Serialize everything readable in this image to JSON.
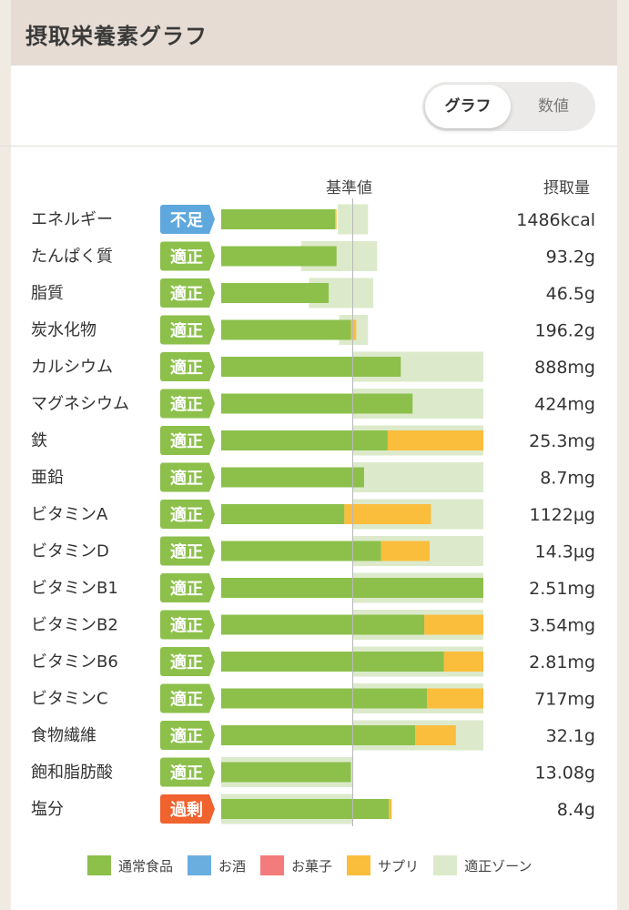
{
  "header": {
    "title": "摂取栄養素グラフ"
  },
  "toggle": {
    "graph_label": "グラフ",
    "value_label": "数値"
  },
  "colors": {
    "normal_food": "#8cc04b",
    "alcohol": "#6aaee0",
    "snack": "#f47b7b",
    "supplement": "#fbbd3c",
    "zone": "#dceacb",
    "status_ok": "#8cc04b",
    "status_low": "#5fa8dd",
    "status_high": "#f0622e"
  },
  "chart_data": {
    "type": "bar",
    "orientation": "horizontal",
    "stacked": true,
    "reference_label": "基準値",
    "amount_label": "摂取量",
    "reference_value": 100,
    "xlim": [
      0,
      200
    ],
    "unit": "% of reference",
    "categories": [
      "エネルギー",
      "たんぱく質",
      "脂質",
      "炭水化物",
      "カルシウム",
      "マグネシウム",
      "鉄",
      "亜鉛",
      "ビタミンA",
      "ビタミンD",
      "ビタミンB1",
      "ビタミンB2",
      "ビタミンB6",
      "ビタミンC",
      "食物繊維",
      "飽和脂肪酸",
      "塩分"
    ],
    "status": [
      "不足",
      "適正",
      "適正",
      "適正",
      "適正",
      "適正",
      "適正",
      "適正",
      "適正",
      "適正",
      "適正",
      "適正",
      "適正",
      "適正",
      "適正",
      "適正",
      "過剰"
    ],
    "amounts": [
      "1486kcal",
      "93.2g",
      "46.5g",
      "196.2g",
      "888mg",
      "424mg",
      "25.3mg",
      "8.7mg",
      "1122µg",
      "14.3µg",
      "2.51mg",
      "3.54mg",
      "2.81mg",
      "717mg",
      "32.1g",
      "13.08g",
      "8.4g"
    ],
    "series": [
      {
        "name": "通常食品",
        "values": [
          87,
          88,
          82,
          99,
          137,
          146,
          127,
          109,
          94,
          122,
          200,
          155,
          170,
          157,
          148,
          99,
          128
        ]
      },
      {
        "name": "お酒",
        "values": [
          0,
          0,
          0,
          0,
          0,
          0,
          0,
          0,
          0,
          0,
          0,
          0,
          0,
          0,
          0,
          0,
          0
        ]
      },
      {
        "name": "お菓子",
        "values": [
          0,
          0,
          0,
          0,
          0,
          0,
          0,
          0,
          0,
          0,
          0,
          0,
          0,
          0,
          0,
          0,
          0
        ]
      },
      {
        "name": "サプリ",
        "values": [
          1,
          0,
          0,
          4,
          0,
          0,
          73,
          0,
          66,
          37,
          0,
          45,
          30,
          43,
          31,
          0,
          2
        ]
      }
    ],
    "zones": [
      [
        89,
        112
      ],
      [
        61,
        119
      ],
      [
        67,
        116
      ],
      [
        90,
        112
      ],
      [
        100,
        200
      ],
      [
        100,
        200
      ],
      [
        100,
        200
      ],
      [
        100,
        200
      ],
      [
        100,
        200
      ],
      [
        100,
        200
      ],
      [
        100,
        200
      ],
      [
        100,
        200
      ],
      [
        100,
        200
      ],
      [
        100,
        200
      ],
      [
        100,
        200
      ],
      [
        0,
        100
      ],
      [
        0,
        100
      ]
    ]
  },
  "legend": [
    {
      "label": "通常食品",
      "color_key": "normal_food"
    },
    {
      "label": "お酒",
      "color_key": "alcohol"
    },
    {
      "label": "お菓子",
      "color_key": "snack"
    },
    {
      "label": "サプリ",
      "color_key": "supplement"
    },
    {
      "label": "適正ゾーン",
      "color_key": "zone"
    }
  ]
}
